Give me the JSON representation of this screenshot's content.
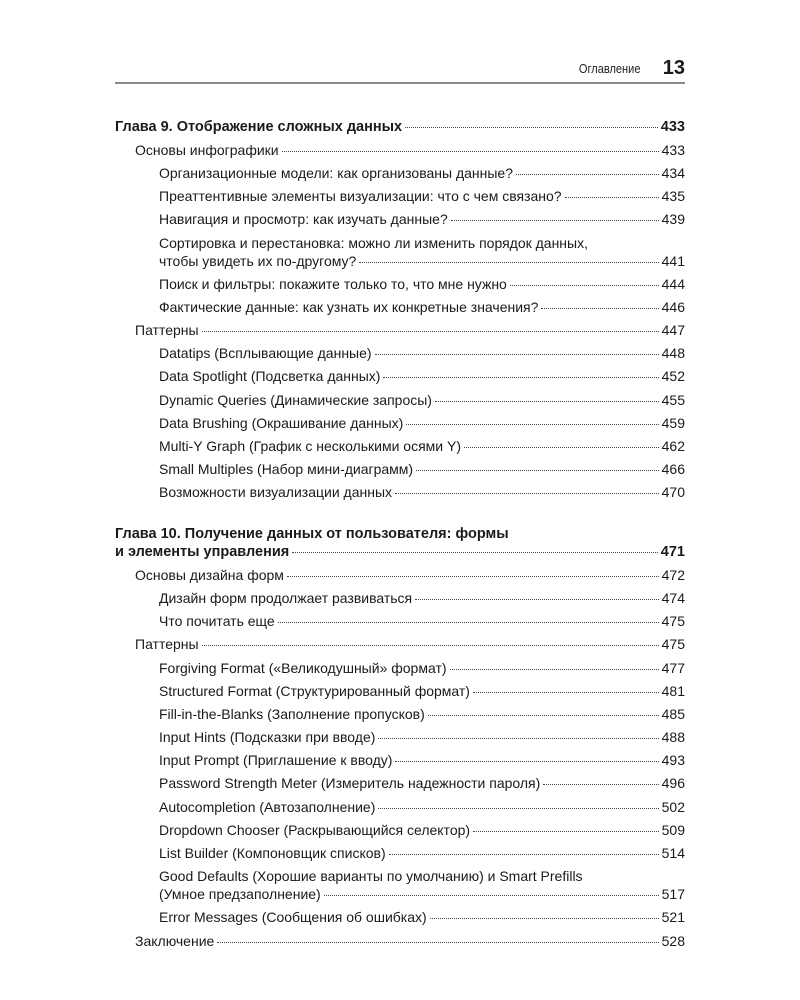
{
  "header": {
    "running_title": "Оглавление",
    "page_number": "13"
  },
  "chapters": [
    {
      "entries": [
        {
          "level": 0,
          "lines": [
            "Глава 9. Отображение сложных данных"
          ],
          "page": "433"
        },
        {
          "level": 1,
          "lines": [
            "Основы инфографики"
          ],
          "page": "433"
        },
        {
          "level": 2,
          "lines": [
            "Организационные модели: как организованы данные?"
          ],
          "page": "434"
        },
        {
          "level": 2,
          "lines": [
            "Преаттентивные элементы визуализации: что с чем связано?"
          ],
          "page": "435"
        },
        {
          "level": 2,
          "lines": [
            "Навигация и просмотр: как изучать данные?"
          ],
          "page": "439"
        },
        {
          "level": 2,
          "lines": [
            "Сортировка и перестановка: можно ли изменить порядок данных,",
            "чтобы увидеть их по-другому?"
          ],
          "page": "441"
        },
        {
          "level": 2,
          "lines": [
            "Поиск и фильтры: покажите только то, что мне нужно"
          ],
          "page": "444"
        },
        {
          "level": 2,
          "lines": [
            "Фактические данные: как узнать их конкретные значения?"
          ],
          "page": "446"
        },
        {
          "level": 1,
          "lines": [
            "Паттерны"
          ],
          "page": "447"
        },
        {
          "level": 2,
          "lines": [
            "Datatips (Всплывающие данные)"
          ],
          "page": "448"
        },
        {
          "level": 2,
          "lines": [
            "Data Spotlight (Подсветка данных)"
          ],
          "page": "452"
        },
        {
          "level": 2,
          "lines": [
            "Dynamic Queries (Динамические запросы)"
          ],
          "page": "455"
        },
        {
          "level": 2,
          "lines": [
            "Data Brushing (Окрашивание данных)"
          ],
          "page": "459"
        },
        {
          "level": 2,
          "lines": [
            "Multi-Y Graph (График с несколькими осями Y)"
          ],
          "page": "462"
        },
        {
          "level": 2,
          "lines": [
            "Small Multiples (Набор мини-диаграмм)"
          ],
          "page": "466"
        },
        {
          "level": 2,
          "lines": [
            "Возможности визуализации данных"
          ],
          "page": "470"
        }
      ]
    },
    {
      "entries": [
        {
          "level": 0,
          "lines": [
            "Глава 10. Получение данных от пользователя: формы",
            "и элементы управления"
          ],
          "page": "471"
        },
        {
          "level": 1,
          "lines": [
            "Основы дизайна форм"
          ],
          "page": "472"
        },
        {
          "level": 2,
          "lines": [
            "Дизайн форм продолжает развиваться"
          ],
          "page": "474"
        },
        {
          "level": 2,
          "lines": [
            "Что почитать еще"
          ],
          "page": "475"
        },
        {
          "level": 1,
          "lines": [
            "Паттерны"
          ],
          "page": "475"
        },
        {
          "level": 2,
          "lines": [
            "Forgiving Format («Великодушный» формат)"
          ],
          "page": "477"
        },
        {
          "level": 2,
          "lines": [
            "Structured Format (Структурированный формат)"
          ],
          "page": "481"
        },
        {
          "level": 2,
          "lines": [
            "Fill-in-the-Blanks (Заполнение пропусков)"
          ],
          "page": "485"
        },
        {
          "level": 2,
          "lines": [
            "Input Hints (Подсказки при вводе)"
          ],
          "page": "488"
        },
        {
          "level": 2,
          "lines": [
            "Input Prompt (Приглашение к вводу)"
          ],
          "page": "493"
        },
        {
          "level": 2,
          "lines": [
            "Password Strength Meter (Измеритель надежности пароля)"
          ],
          "page": "496"
        },
        {
          "level": 2,
          "lines": [
            "Autocompletion (Автозаполнение)"
          ],
          "page": "502"
        },
        {
          "level": 2,
          "lines": [
            "Dropdown Chooser (Раскрывающийся селектор)"
          ],
          "page": "509"
        },
        {
          "level": 2,
          "lines": [
            "List Builder (Компоновщик списков)"
          ],
          "page": "514"
        },
        {
          "level": 2,
          "lines": [
            "Good Defaults (Хорошие варианты по умолчанию) и Smart Prefills",
            "(Умное предзаполнение)"
          ],
          "page": "517"
        },
        {
          "level": 2,
          "lines": [
            "Error Messages (Сообщения об ошибках)"
          ],
          "page": "521"
        },
        {
          "level": 1,
          "lines": [
            "Заключение"
          ],
          "page": "528"
        }
      ]
    }
  ]
}
